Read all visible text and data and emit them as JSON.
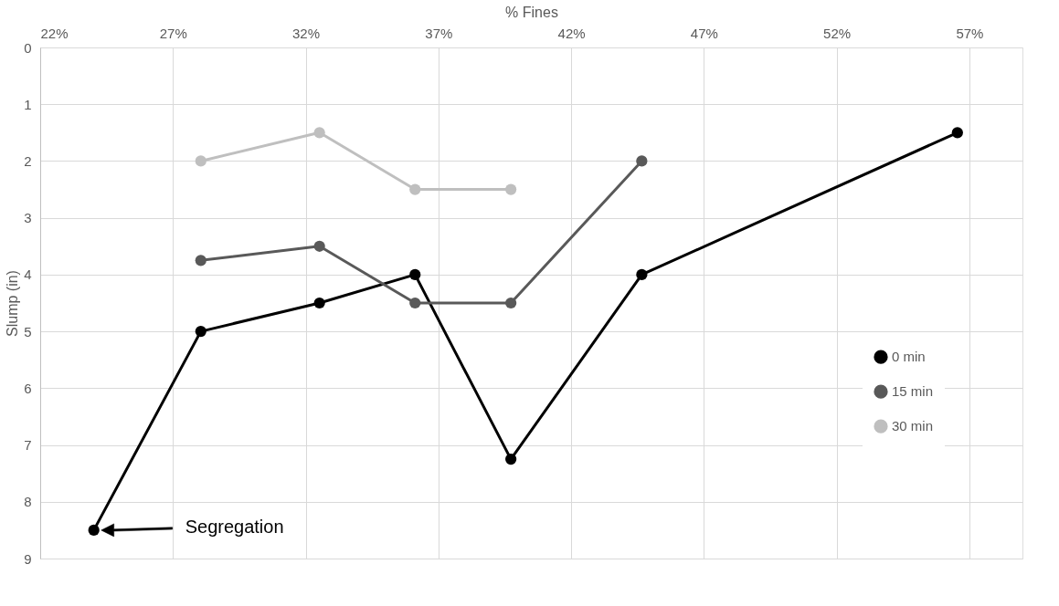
{
  "chart_data": {
    "type": "line",
    "xlabel": "% Fines",
    "ylabel": "Slump (in)",
    "xlim": [
      22,
      59
    ],
    "xticks": [
      {
        "value": 22,
        "label": "22%"
      },
      {
        "value": 27,
        "label": "27%"
      },
      {
        "value": 32,
        "label": "32%"
      },
      {
        "value": 37,
        "label": "37%"
      },
      {
        "value": 42,
        "label": "42%"
      },
      {
        "value": 47,
        "label": "47%"
      },
      {
        "value": 52,
        "label": "52%"
      },
      {
        "value": 57,
        "label": "57%"
      }
    ],
    "ylim": [
      9,
      0
    ],
    "yticks": [
      0,
      1,
      2,
      3,
      4,
      5,
      6,
      7,
      8,
      9
    ],
    "grid": true,
    "legend": "right",
    "marker": "circle",
    "line_style": "solid",
    "series": [
      {
        "name": "0 min",
        "color": "#000000",
        "x": [
          24.02,
          28.05,
          32.52,
          36.12,
          39.73,
          44.66,
          56.55
        ],
        "values": [
          8.5,
          5,
          4.5,
          4,
          7.25,
          4,
          1.5
        ]
      },
      {
        "name": "15 min",
        "color": "#595959",
        "x": [
          28.05,
          32.52,
          36.12,
          39.73,
          44.66
        ],
        "values": [
          3.75,
          3.5,
          4.5,
          4.5,
          2
        ]
      },
      {
        "name": "30 min",
        "color": "#bfbfbf",
        "x": [
          28.05,
          32.52,
          36.12,
          39.73
        ],
        "values": [
          2,
          1.5,
          2.5,
          2.5
        ]
      }
    ],
    "annotations": [
      "Segregation"
    ]
  }
}
